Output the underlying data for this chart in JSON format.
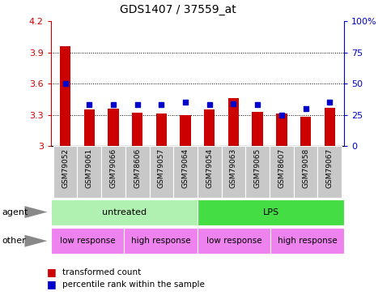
{
  "title": "GDS1407 / 37559_at",
  "samples": [
    "GSM79052",
    "GSM79061",
    "GSM79066",
    "GSM78606",
    "GSM79057",
    "GSM79064",
    "GSM79054",
    "GSM79063",
    "GSM79065",
    "GSM78607",
    "GSM79058",
    "GSM79067"
  ],
  "red_values": [
    3.96,
    3.35,
    3.36,
    3.32,
    3.31,
    3.3,
    3.35,
    3.46,
    3.33,
    3.31,
    3.28,
    3.37
  ],
  "blue_pct": [
    50,
    33,
    33,
    33,
    33,
    35,
    33,
    34,
    33,
    25,
    30,
    35
  ],
  "ylim_left": [
    3.0,
    4.2
  ],
  "ylim_right": [
    0,
    100
  ],
  "yticks_left": [
    3.0,
    3.3,
    3.6,
    3.9,
    4.2
  ],
  "ytick_labels_left": [
    "3",
    "3.3",
    "3.6",
    "3.9",
    "4.2"
  ],
  "yticks_right": [
    0,
    25,
    50,
    75,
    100
  ],
  "ytick_labels_right": [
    "0",
    "25",
    "50",
    "75",
    "100%"
  ],
  "gridlines": [
    3.3,
    3.6,
    3.9
  ],
  "agent_labels": [
    "untreated",
    "LPS"
  ],
  "agent_starts": [
    0,
    6
  ],
  "agent_ends": [
    6,
    12
  ],
  "agent_colors": [
    "#b0f0b0",
    "#44dd44"
  ],
  "other_labels": [
    "low response",
    "high response",
    "low response",
    "high response"
  ],
  "other_starts": [
    0,
    3,
    6,
    9
  ],
  "other_ends": [
    3,
    6,
    9,
    12
  ],
  "other_color": "#ee82ee",
  "bar_color": "#cc0000",
  "blue_color": "#0000cc",
  "legend_red": "transformed count",
  "legend_blue": "percentile rank within the sample",
  "base": 3.0,
  "bar_width": 0.45,
  "sample_box_color": "#c8c8c8"
}
